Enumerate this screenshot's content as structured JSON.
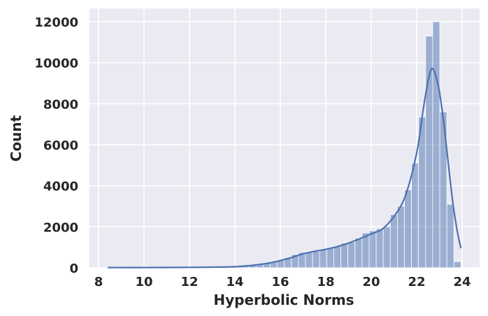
{
  "chart_data": {
    "type": "bar",
    "subtype": "histogram-with-kde",
    "title": "",
    "xlabel": "Hyperbolic Norms",
    "ylabel": "Count",
    "xlim": [
      7.6,
      24.77
    ],
    "ylim": [
      0,
      12650
    ],
    "xticks": [
      8,
      10,
      12,
      14,
      16,
      18,
      20,
      22,
      24
    ],
    "yticks": [
      0,
      2000,
      4000,
      6000,
      8000,
      10000,
      12000
    ],
    "grid": true,
    "background": "#eaeaf2",
    "bar_color": "#4c72b0",
    "bin_start": 8.4,
    "bin_width": 0.311,
    "values": [
      10,
      5,
      5,
      5,
      5,
      5,
      5,
      8,
      8,
      10,
      10,
      12,
      15,
      15,
      20,
      25,
      30,
      40,
      60,
      90,
      150,
      200,
      250,
      300,
      380,
      500,
      650,
      750,
      780,
      800,
      900,
      950,
      1050,
      1200,
      1250,
      1450,
      1700,
      1800,
      1900,
      2000,
      2600,
      3000,
      3800,
      5100,
      7350,
      11300,
      12000,
      7600,
      3100,
      300
    ],
    "kde": {
      "x": [
        8.4,
        10,
        12,
        13,
        14,
        14.5,
        15,
        15.5,
        16,
        16.5,
        17,
        17.5,
        18,
        18.5,
        19,
        19.5,
        20,
        20.5,
        21,
        21.5,
        22,
        22.3,
        22.5,
        22.65,
        22.8,
        23,
        23.2,
        23.4,
        23.6,
        23.8,
        23.95
      ],
      "y": [
        10,
        10,
        20,
        30,
        50,
        90,
        150,
        230,
        350,
        500,
        680,
        800,
        900,
        1030,
        1200,
        1420,
        1650,
        1900,
        2500,
        3500,
        5600,
        7800,
        9100,
        9700,
        9500,
        8600,
        7000,
        5000,
        3100,
        1700,
        950
      ]
    }
  }
}
